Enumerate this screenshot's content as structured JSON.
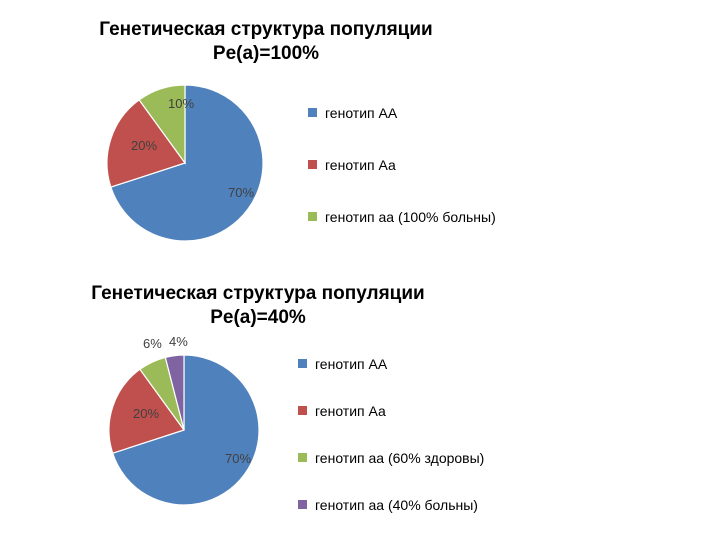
{
  "chart_data": [
    {
      "type": "pie",
      "title": [
        "Генетическая структура популяции",
        "Pe(a)=100%"
      ],
      "slices": [
        {
          "name": "генотип АА",
          "value": 70,
          "label": "70%",
          "color": "#4f81bd"
        },
        {
          "name": "генотип Аа",
          "value": 20,
          "label": "20%",
          "color": "#c0504d"
        },
        {
          "name": "генотип аа (100% больны)",
          "value": 10,
          "label": "10%",
          "color": "#9bbb59"
        }
      ],
      "legend_position": "right"
    },
    {
      "type": "pie",
      "title": [
        "Генетическая структура популяции",
        "Pe(a)=40%"
      ],
      "slices": [
        {
          "name": "генотип АА",
          "value": 70,
          "label": "70%",
          "color": "#4f81bd"
        },
        {
          "name": "генотип Аа",
          "value": 20,
          "label": "20%",
          "color": "#c0504d"
        },
        {
          "name": "генотип аа (60% здоровы)",
          "value": 6,
          "label": "6%",
          "color": "#9bbb59"
        },
        {
          "name": "генотип аа (40% больны)",
          "value": 4,
          "label": "4%",
          "color": "#8064a2"
        }
      ],
      "legend_position": "right"
    }
  ]
}
